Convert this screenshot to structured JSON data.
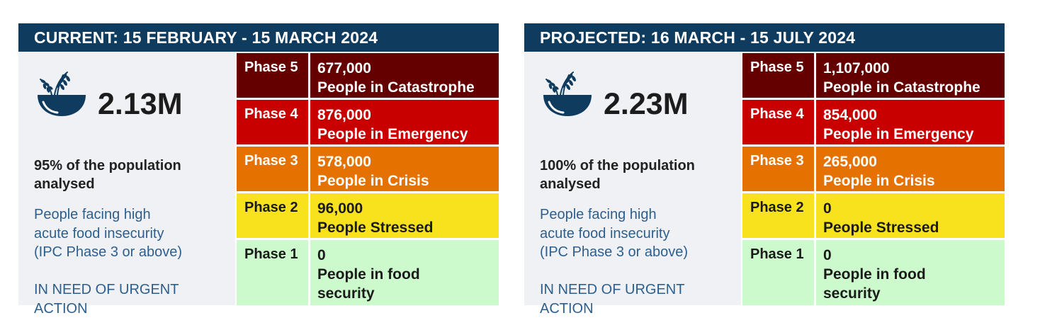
{
  "colors": {
    "header_bg": "#0f3b5e",
    "summary_bg": "#eff1f4",
    "icon": "#0f3b5e",
    "description_text": "#2d5f8e",
    "phase5_bg": "#650000",
    "phase4_bg": "#c80000",
    "phase3_bg": "#e57200",
    "phase2_bg": "#f8e21e",
    "phase1_bg": "#cdfacd",
    "phase_text_light": "#ffffff",
    "phase_text_dark": "#1a1a1a"
  },
  "panels": {
    "current": {
      "header": "CURRENT:  15 FEBRUARY - 15 MARCH 2024",
      "icon": "wheat-bowl-icon",
      "total": "2.13M",
      "population_line1": "95% of the population",
      "population_line2": "analysed",
      "desc_line1": "People facing high",
      "desc_line2": "acute food insecurity",
      "desc_line3": "(IPC Phase 3 or above)",
      "need_line1": "IN NEED OF URGENT",
      "need_line2": "ACTION",
      "phases": [
        {
          "phase": "Phase 5",
          "value": "677,000",
          "label": "People in Catastrophe"
        },
        {
          "phase": "Phase 4",
          "value": "876,000",
          "label": "People in Emergency"
        },
        {
          "phase": "Phase 3",
          "value": "578,000",
          "label": "People in Crisis"
        },
        {
          "phase": "Phase 2",
          "value": "96,000",
          "label": "People Stressed"
        },
        {
          "phase": "Phase 1",
          "value": "0",
          "label": "People in food security"
        }
      ]
    },
    "projected": {
      "header": "PROJECTED:  16 MARCH - 15 JULY 2024",
      "icon": "wheat-bowl-icon",
      "total": "2.23M",
      "population_line1": "100% of the population",
      "population_line2": "analysed",
      "desc_line1": "People facing high",
      "desc_line2": "acute food insecurity",
      "desc_line3": "(IPC Phase 3 or above)",
      "need_line1": "IN NEED OF URGENT",
      "need_line2": "ACTION",
      "phases": [
        {
          "phase": "Phase 5",
          "value": "1,107,000",
          "label": "People in Catastrophe"
        },
        {
          "phase": "Phase 4",
          "value": "854,000",
          "label": "People in Emergency"
        },
        {
          "phase": "Phase 3",
          "value": "265,000",
          "label": "People in Crisis"
        },
        {
          "phase": "Phase 2",
          "value": "0",
          "label": "People Stressed"
        },
        {
          "phase": "Phase 1",
          "value": "0",
          "label": "People in food security"
        }
      ]
    }
  }
}
